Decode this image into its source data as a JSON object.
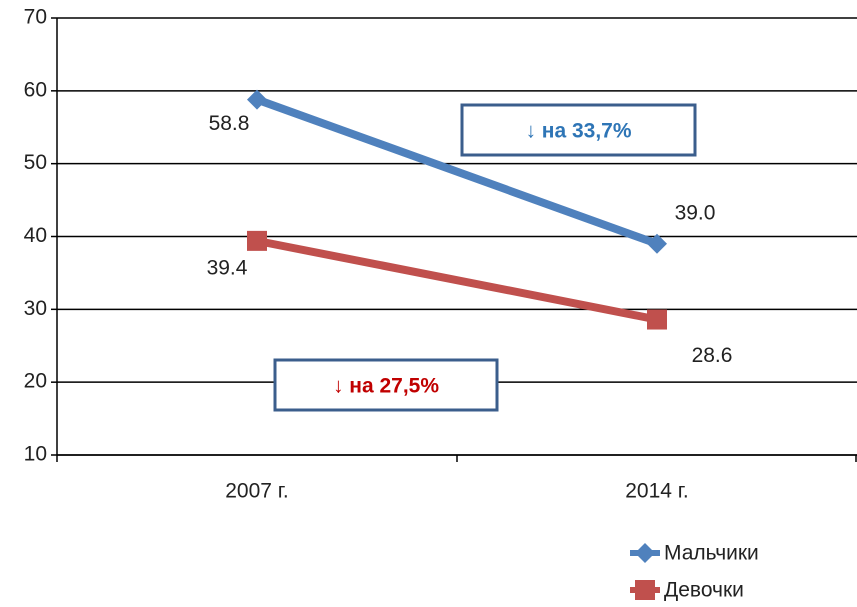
{
  "chart_data": {
    "type": "line",
    "categories": [
      "2007 г.",
      "2014 г."
    ],
    "series": [
      {
        "name": "Мальчики",
        "color": "#4f81bd",
        "marker": "diamond",
        "values": [
          58.8,
          39.0
        ],
        "value_labels": [
          "58.8",
          "39.0"
        ]
      },
      {
        "name": "Девочки",
        "color": "#c0504d",
        "marker": "square",
        "values": [
          39.4,
          28.6
        ],
        "value_labels": [
          "39.4",
          "28.6"
        ]
      }
    ],
    "ylim": [
      10,
      70
    ],
    "yticks": [
      10,
      20,
      30,
      40,
      50,
      60,
      70
    ],
    "grid": true,
    "legend": "bottom-right",
    "annotations": [
      {
        "text": "↓ на 33,7%",
        "color": "#2e75b6"
      },
      {
        "text": "↓ на 27,5%",
        "color": "#c00000"
      }
    ]
  }
}
